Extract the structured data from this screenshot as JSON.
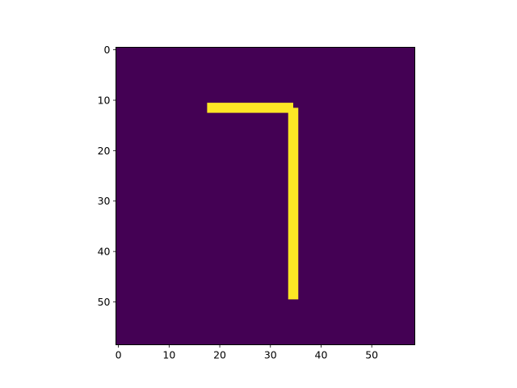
{
  "chart_data": {
    "type": "heatmap",
    "title": "",
    "xlabel": "",
    "ylabel": "",
    "grid_shape": [
      59,
      59
    ],
    "xlim": [
      -0.5,
      58.5
    ],
    "ylim": [
      58.5,
      -0.5
    ],
    "x_ticks": [
      0,
      10,
      20,
      30,
      40,
      50
    ],
    "y_ticks": [
      0,
      10,
      20,
      30,
      40,
      50
    ],
    "grid": false,
    "colormap": "viridis",
    "background_value": 0,
    "foreground_value": 1,
    "colors": {
      "background": "#440154",
      "foreground": "#fde725"
    },
    "filled_regions": [
      {
        "name": "horizontal-stroke",
        "rows": [
          11,
          12
        ],
        "cols": [
          18,
          34
        ]
      },
      {
        "name": "vertical-stroke",
        "rows": [
          12,
          49
        ],
        "cols": [
          34,
          35
        ]
      }
    ]
  }
}
